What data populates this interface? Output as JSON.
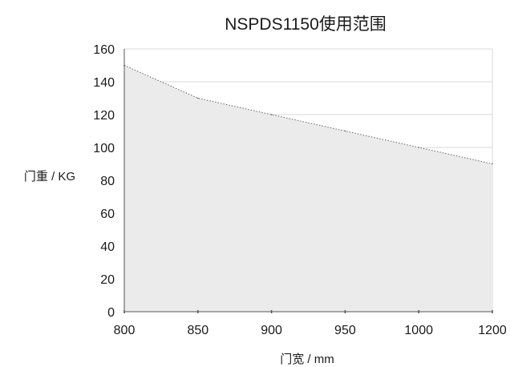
{
  "chart_data": {
    "type": "area",
    "title": "NSPDS1150使用范围",
    "xlabel": "门宽 / mm",
    "ylabel": "门重 / KG",
    "x": [
      800,
      850,
      900,
      950,
      1000,
      1200
    ],
    "x_ticks": [
      "800",
      "850",
      "900",
      "950",
      "1000",
      "1200"
    ],
    "y_ticks": [
      "0",
      "20",
      "40",
      "60",
      "80",
      "100",
      "120",
      "140",
      "160"
    ],
    "xlim": [
      800,
      1200
    ],
    "ylim": [
      0,
      160
    ],
    "series": [
      {
        "values": [
          150,
          130,
          120,
          110,
          100,
          90
        ]
      }
    ],
    "grid": true,
    "colors": {
      "fill": "#ebebeb",
      "line": "#666666",
      "grid": "#d9d9d9",
      "axis": "#555555"
    }
  }
}
